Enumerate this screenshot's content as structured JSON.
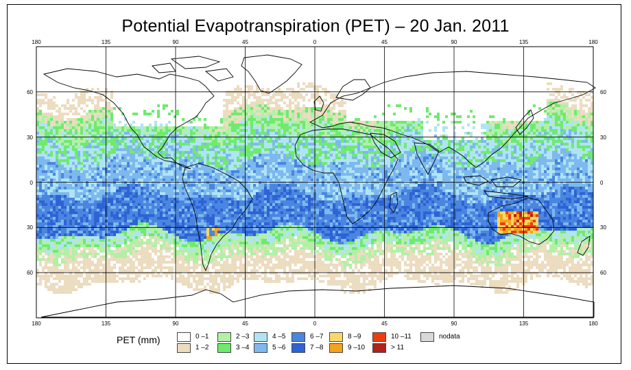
{
  "title": "Potential Evapotranspiration (PET) – 20 Jan. 2011",
  "chart_data": {
    "type": "heatmap",
    "projection": "equirectangular",
    "title": "Potential Evapotranspiration (PET) – 20 Jan. 2011",
    "date": "20 Jan. 2011",
    "variable": "PET",
    "units": "mm",
    "x_ticks": [
      "180",
      "135",
      "90",
      "45",
      "0",
      "45",
      "90",
      "135",
      "180"
    ],
    "y_ticks": [
      "60",
      "30",
      "0",
      "30",
      "60"
    ],
    "lon_range": [
      -180,
      180
    ],
    "lat_range": [
      -90,
      90
    ],
    "legend_title": "PET (mm)",
    "legend": [
      {
        "label": "0 –1",
        "color": "#ffffff"
      },
      {
        "label": "1 –2",
        "color": "#ecdcc0"
      },
      {
        "label": "2 –3",
        "color": "#b2f0a6"
      },
      {
        "label": "3 –4",
        "color": "#6fea6f"
      },
      {
        "label": "4 –5",
        "color": "#b0e4f4"
      },
      {
        "label": "5 –6",
        "color": "#7db8ee"
      },
      {
        "label": "6 –7",
        "color": "#4a86e0"
      },
      {
        "label": "7 –8",
        "color": "#2e63d6"
      },
      {
        "label": "8 –9",
        "color": "#f8d86a"
      },
      {
        "label": "9 –10",
        "color": "#f5a21e"
      },
      {
        "label": "10 –11",
        "color": "#ef3b10"
      },
      {
        "label": "> 11",
        "color": "#b0221a"
      },
      {
        "label": "nodata",
        "color": "#d8d8d8"
      }
    ],
    "bands": [
      {
        "lat": [
          75,
          90
        ],
        "pet": "0-1"
      },
      {
        "lat": [
          52,
          75
        ],
        "pet": "0-1 (land), 1-2 (ocean)"
      },
      {
        "lat": [
          35,
          52
        ],
        "pet": "1-4"
      },
      {
        "lat": [
          15,
          35
        ],
        "pet": "3-5"
      },
      {
        "lat": [
          -10,
          15
        ],
        "pet": "4-6"
      },
      {
        "lat": [
          -35,
          -10
        ],
        "pet": "5-8"
      },
      {
        "lat": [
          -50,
          -35
        ],
        "pet": "2-4"
      },
      {
        "lat": [
          -70,
          -50
        ],
        "pet": "1-2"
      },
      {
        "lat": [
          -90,
          -70
        ],
        "pet": "0-1"
      }
    ],
    "hotspots": [
      {
        "region": "Australia interior",
        "pet": "8-11+"
      },
      {
        "region": "Argentina",
        "pet": "8-10"
      }
    ]
  }
}
